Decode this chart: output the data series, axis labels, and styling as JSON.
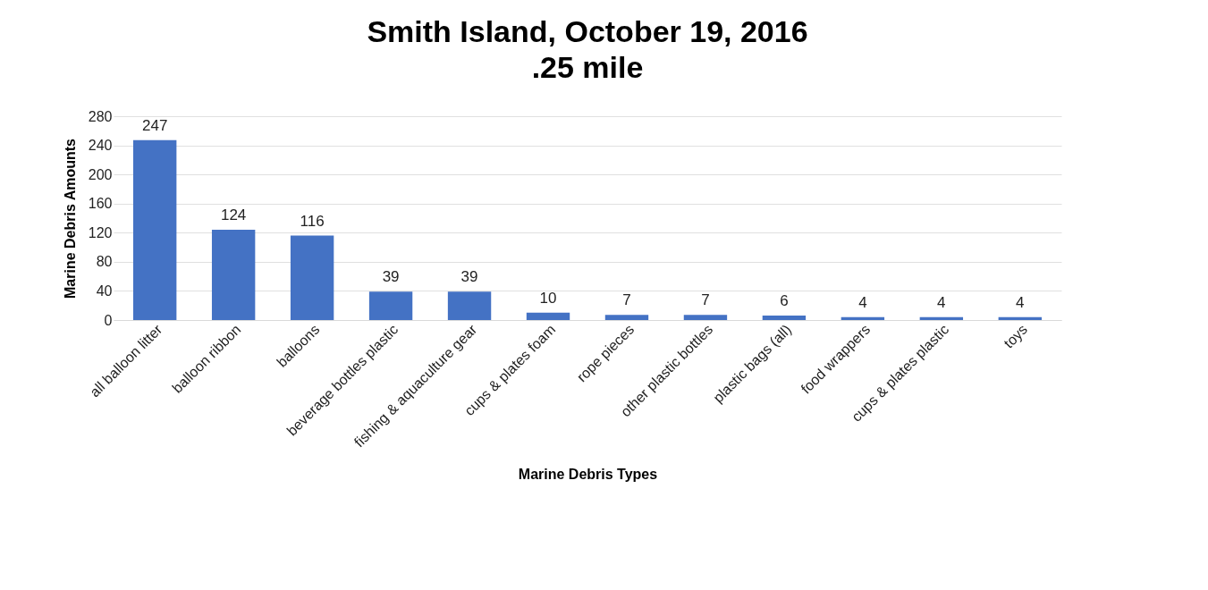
{
  "chart_data": {
    "type": "bar",
    "title": "Smith Island, October 19, 2016",
    "subtitle": ".25 mile",
    "xlabel": "Marine Debris Types",
    "ylabel": "Marine Debris Amounts",
    "categories": [
      "all balloon litter",
      "balloon ribbon",
      "balloons",
      "beverage bottles plastic",
      "fishing & aquaculture gear",
      "cups & plates foam",
      "rope pieces",
      "other plastic bottles",
      "plastic bags (all)",
      "food wrappers",
      "cups & plates plastic",
      "toys"
    ],
    "values": [
      247,
      124,
      116,
      39,
      39,
      10,
      7,
      7,
      6,
      4,
      4,
      4
    ],
    "color": "#4472c4",
    "ylim": [
      0,
      280
    ],
    "yticks": [
      0,
      40,
      80,
      120,
      160,
      200,
      240,
      280
    ],
    "grid": "y",
    "data_labels": true
  }
}
